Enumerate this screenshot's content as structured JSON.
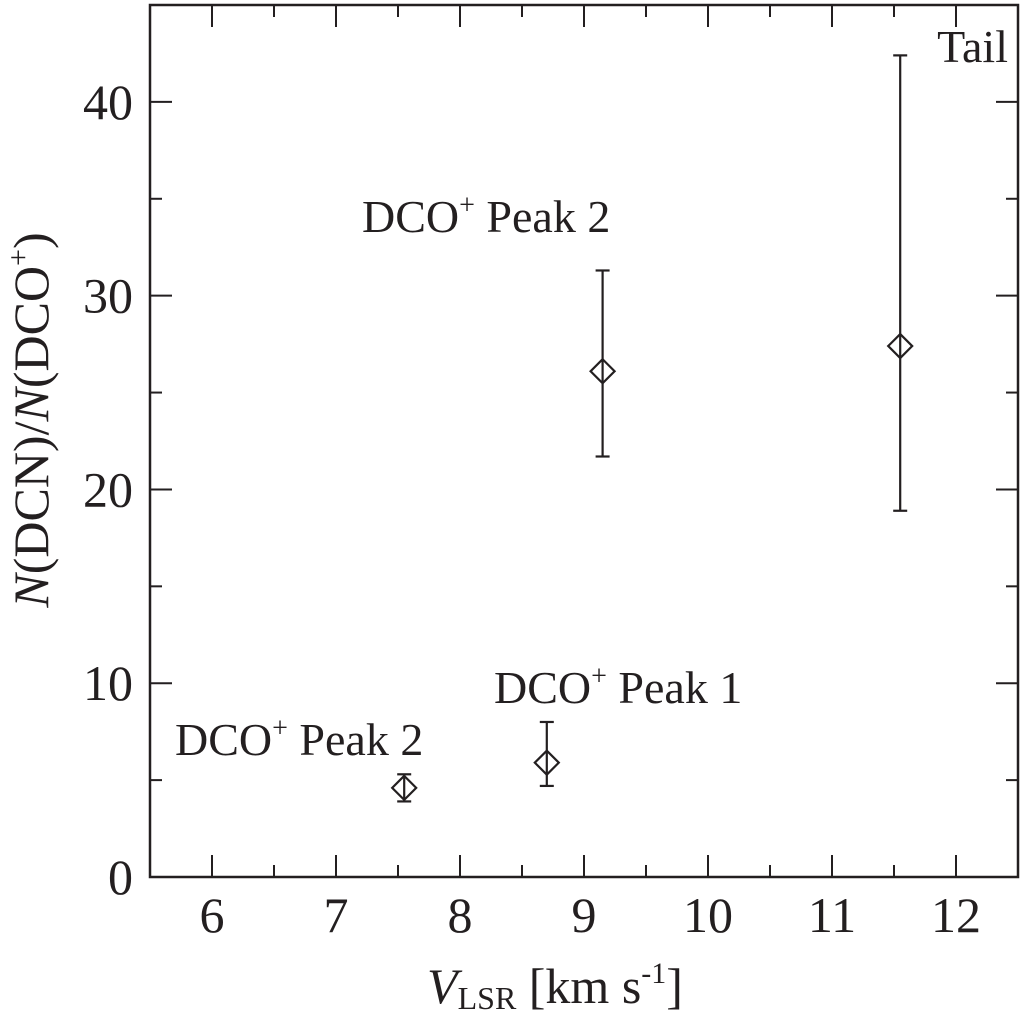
{
  "chart_data": {
    "type": "scatter",
    "title": "",
    "xlabel": {
      "italic": "V",
      "sub": "LSR",
      "rest": " [km s",
      "sup": "-1",
      "close": "]"
    },
    "ylabel": {
      "n1": "N",
      "t1": "(DCN)/",
      "n2": "N",
      "t2": "(DCO",
      "sup": "+",
      "t3": ")"
    },
    "xlim": [
      5.5,
      12.5
    ],
    "ylim": [
      0,
      45
    ],
    "x_major_ticks": [
      6,
      7,
      8,
      9,
      10,
      11,
      12
    ],
    "x_minor_step": 0.5,
    "y_major_ticks": [
      0,
      10,
      20,
      30,
      40
    ],
    "y_minor_step": 5,
    "grid": false,
    "points": [
      {
        "x": 7.55,
        "y": 4.6,
        "yerr_low": 3.9,
        "yerr_high": 5.3,
        "label_pre": "DCO",
        "label_sup": "+",
        "label_post": " Peak 2"
      },
      {
        "x": 8.7,
        "y": 5.9,
        "yerr_low": 4.7,
        "yerr_high": 8.0,
        "label_pre": "DCO",
        "label_sup": "+",
        "label_post": " Peak 1"
      },
      {
        "x": 9.15,
        "y": 26.1,
        "yerr_low": 21.7,
        "yerr_high": 31.3,
        "label_pre": "DCO",
        "label_sup": "+",
        "label_post": " Peak 2"
      },
      {
        "x": 11.55,
        "y": 27.4,
        "yerr_low": 18.9,
        "yerr_high": 42.4,
        "label_pre": "",
        "label_sup": "",
        "label_post": "Tail"
      }
    ]
  }
}
